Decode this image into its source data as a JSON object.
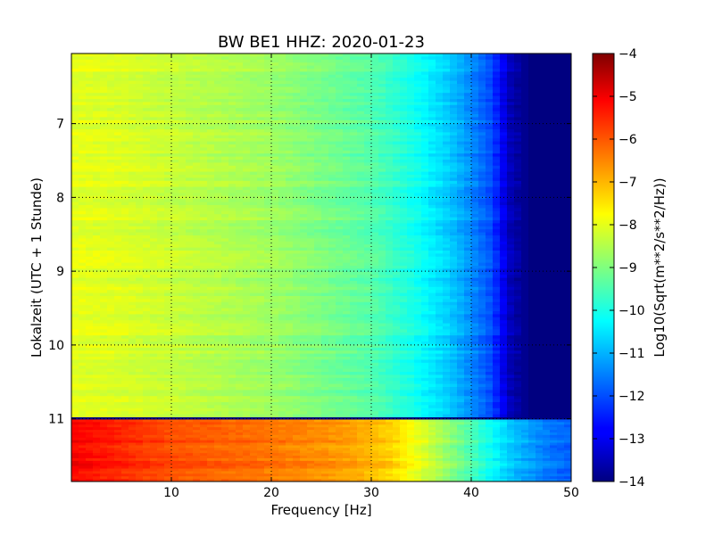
{
  "chart_data": {
    "type": "heatmap",
    "title": "BW BE1 HHZ: 2020-01-23",
    "xlabel": "Frequency [Hz]",
    "ylabel": "Lokalzeit (UTC + 1 Stunde)",
    "xlim": [
      0,
      50
    ],
    "ylim": [
      11.85,
      6.05
    ],
    "y_inverted": true,
    "x_ticks": [
      10,
      20,
      30,
      40,
      50
    ],
    "x_tick_labels": [
      "10",
      "20",
      "30",
      "40",
      "50"
    ],
    "y_ticks": [
      7,
      8,
      9,
      10,
      11
    ],
    "y_tick_labels": [
      "7",
      "8",
      "9",
      "10",
      "11"
    ],
    "grid": true,
    "colormap": "jet",
    "colorbar": {
      "label": "Log10(Sqrt(m**2/s**2/Hz))",
      "range": [
        -14,
        -4
      ],
      "ticks": [
        -4,
        -5,
        -6,
        -7,
        -8,
        -9,
        -10,
        -11,
        -12,
        -13,
        -14
      ],
      "tick_labels": [
        "−4",
        "−5",
        "−6",
        "−7",
        "−8",
        "−9",
        "−10",
        "−11",
        "−12",
        "−13",
        "−14"
      ]
    },
    "regions": [
      {
        "time_range": [
          6.05,
          10.98
        ],
        "profile_freq_hz": [
          0,
          5,
          10,
          20,
          30,
          34,
          38,
          42,
          44,
          46,
          50
        ],
        "profile_log10": [
          -8.0,
          -8.1,
          -8.3,
          -8.7,
          -9.4,
          -10.0,
          -10.8,
          -12.0,
          -13.5,
          -14.0,
          -14.0
        ]
      },
      {
        "time_range": [
          10.98,
          11.01
        ],
        "note_value": -14.0
      },
      {
        "time_range": [
          11.01,
          11.85
        ],
        "profile_freq_hz": [
          0,
          5,
          10,
          20,
          28,
          32,
          36,
          40,
          44,
          48,
          50
        ],
        "profile_log10": [
          -5.2,
          -5.6,
          -6.0,
          -6.4,
          -6.8,
          -7.3,
          -8.3,
          -9.5,
          -10.8,
          -11.6,
          -11.8
        ]
      }
    ]
  }
}
